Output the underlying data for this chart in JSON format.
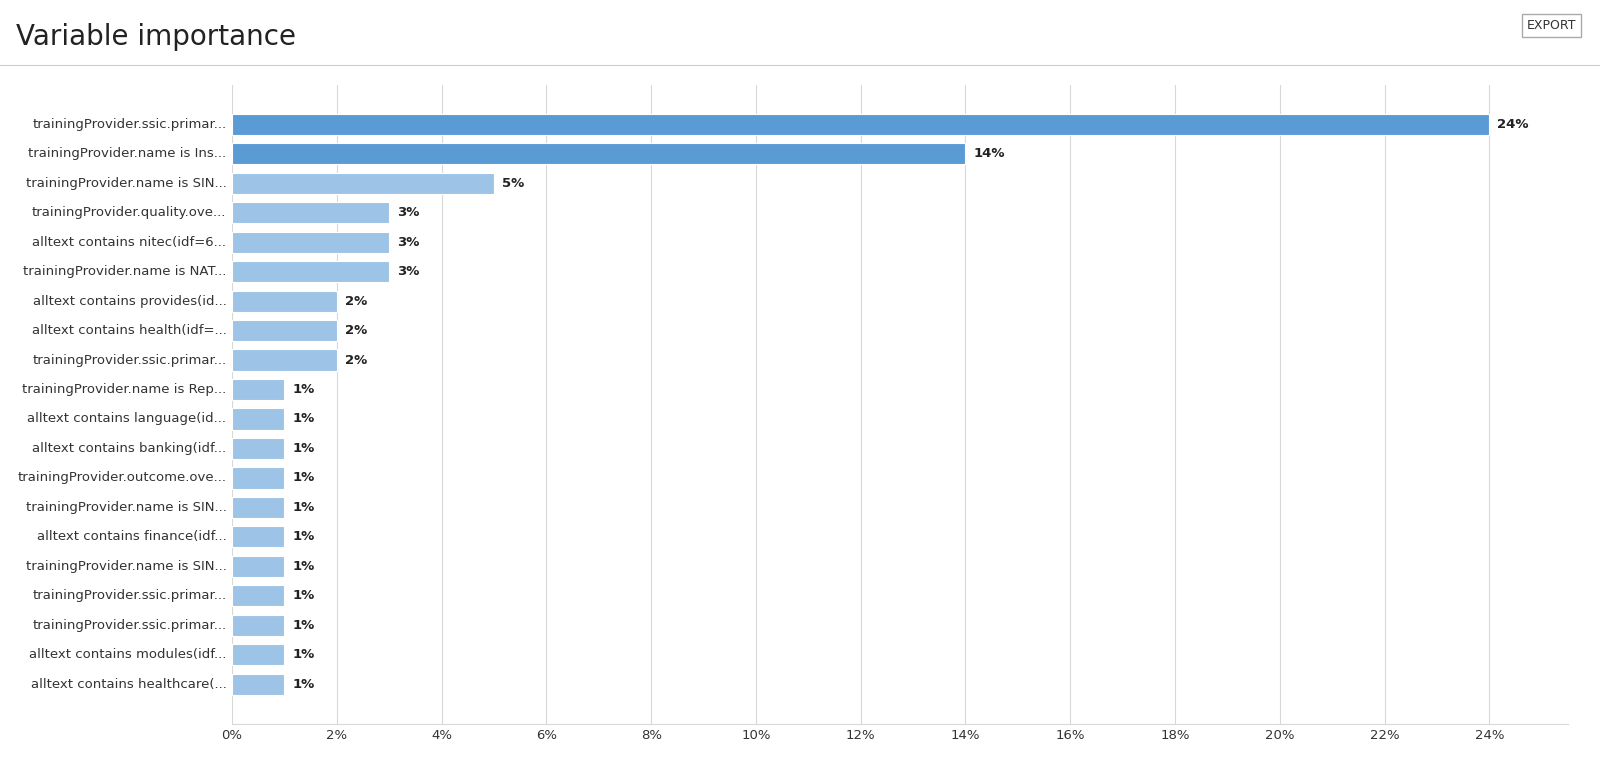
{
  "title": "Variable importance",
  "categories": [
    "trainingProvider.ssic.primar...",
    "trainingProvider.name is Ins...",
    "trainingProvider.name is SIN...",
    "trainingProvider.quality.ove...",
    "alltext contains nitec(idf=6...",
    "trainingProvider.name is NAT...",
    "alltext contains provides(id...",
    "alltext contains health(idf=...",
    "trainingProvider.ssic.primar...",
    "trainingProvider.name is Rep...",
    "alltext contains language(id...",
    "alltext contains banking(idf...",
    "trainingProvider.outcome.ove...",
    "trainingProvider.name is SIN...",
    "alltext contains finance(idf...",
    "trainingProvider.name is SIN...",
    "trainingProvider.ssic.primar...",
    "trainingProvider.ssic.primar...",
    "alltext contains modules(idf...",
    "alltext contains healthcare(..."
  ],
  "values": [
    24,
    14,
    5,
    3,
    3,
    3,
    2,
    2,
    2,
    1,
    1,
    1,
    1,
    1,
    1,
    1,
    1,
    1,
    1,
    1
  ],
  "bar_color_top2": "#5b9bd5",
  "bar_color_rest": "#9dc3e6",
  "xlabel_ticks": [
    "0%",
    "2%",
    "4%",
    "6%",
    "8%",
    "10%",
    "12%",
    "14%",
    "16%",
    "18%",
    "20%",
    "22%",
    "24%"
  ],
  "xlabel_values": [
    0,
    2,
    4,
    6,
    8,
    10,
    12,
    14,
    16,
    18,
    20,
    22,
    24
  ],
  "xlim": [
    0,
    25.5
  ],
  "title_fontsize": 20,
  "label_fontsize": 9.5,
  "tick_fontsize": 9.5,
  "background_color": "#ffffff",
  "grid_color": "#d8d8d8"
}
